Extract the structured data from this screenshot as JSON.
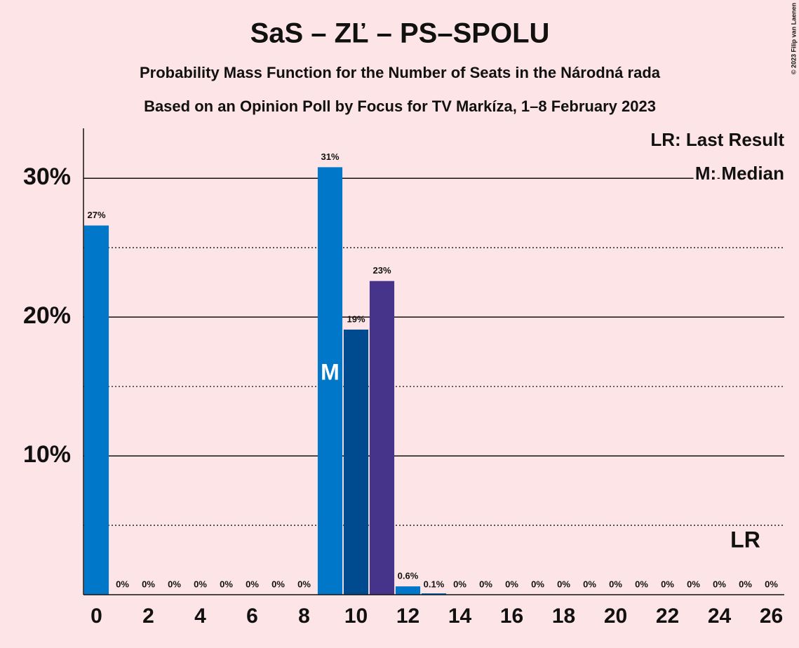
{
  "chart_data": {
    "type": "bar",
    "title": "SaS – ZĽ – PS–SPOLU",
    "subtitle": "Probability Mass Function for the Number of Seats in the Národná rada",
    "subtitle2": "Based on an Opinion Poll by Focus for TV Markíza, 1–8 February 2023",
    "copyright": "© 2023 Filip van Laenen",
    "legend": [
      "LR: Last Result",
      "M: Median"
    ],
    "x": [
      0,
      1,
      2,
      3,
      4,
      5,
      6,
      7,
      8,
      9,
      10,
      11,
      12,
      13,
      14,
      15,
      16,
      17,
      18,
      19,
      20,
      21,
      22,
      23,
      24,
      25,
      26
    ],
    "values": [
      26.6,
      0,
      0,
      0,
      0,
      0,
      0,
      0,
      0,
      30.8,
      19.1,
      22.6,
      0.6,
      0.1,
      0,
      0,
      0,
      0,
      0,
      0,
      0,
      0,
      0,
      0,
      0,
      0,
      0
    ],
    "value_labels": [
      "27%",
      "0%",
      "0%",
      "0%",
      "0%",
      "0%",
      "0%",
      "0%",
      "0%",
      "31%",
      "19%",
      "23%",
      "0.6%",
      "0.1%",
      "0%",
      "0%",
      "0%",
      "0%",
      "0%",
      "0%",
      "0%",
      "0%",
      "0%",
      "0%",
      "0%",
      "0%",
      "0%"
    ],
    "colors": [
      "#0077c8",
      "#0077c8",
      "#0077c8",
      "#0077c8",
      "#0077c8",
      "#0077c8",
      "#0077c8",
      "#0077c8",
      "#0077c8",
      "#0077c8",
      "#004a8f",
      "#45348a",
      "#0077c8",
      "#0077c8",
      "#0077c8",
      "#0077c8",
      "#0077c8",
      "#0077c8",
      "#0077c8",
      "#0077c8",
      "#0077c8",
      "#0077c8",
      "#0077c8",
      "#0077c8",
      "#0077c8",
      "#0077c8",
      "#0077c8"
    ],
    "median": {
      "x": 9,
      "label": "M"
    },
    "last_result": {
      "x": 25,
      "label": "LR"
    },
    "xlim": [
      -0.5,
      26.5
    ],
    "xticks": [
      0,
      2,
      4,
      6,
      8,
      10,
      12,
      14,
      16,
      18,
      20,
      22,
      24,
      26
    ],
    "ylim": [
      0,
      33.6
    ],
    "yticks": [
      {
        "value": 10,
        "label": "10%"
      },
      {
        "value": 20,
        "label": "20%"
      },
      {
        "value": 30,
        "label": "30%"
      }
    ],
    "minor_yticks": [
      5,
      15,
      25
    ],
    "grid": true
  }
}
